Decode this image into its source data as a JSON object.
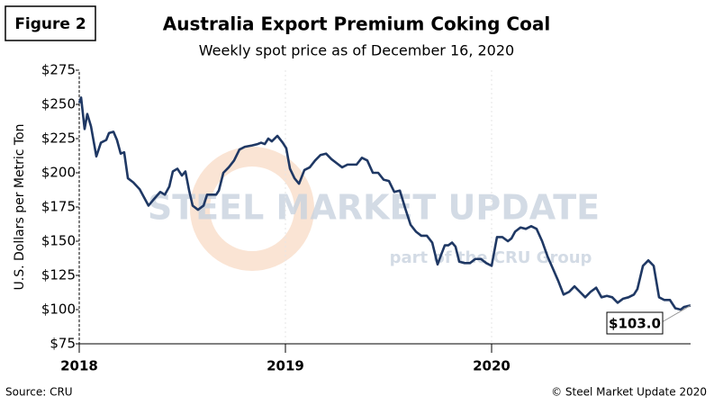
{
  "figure_label": "Figure 2",
  "source": "Source: CRU",
  "copyright": "© Steel Market Update 2020",
  "watermark": {
    "brand": "STEEL MARKET UPDATE",
    "tagline": "part of the CRU Group"
  },
  "chart_data": {
    "type": "line",
    "title": "Australia Export Premium Coking Coal",
    "subtitle": "Weekly spot price as of December  16, 2020",
    "y_label": "U.S. Dollars per Metric Ton",
    "xlim": [
      2018,
      2020.965
    ],
    "xticks": [
      2018,
      2019,
      2020
    ],
    "ylim": [
      75,
      275
    ],
    "yticks": [
      {
        "value": 75,
        "label": "$75"
      },
      {
        "value": 100,
        "label": "$100"
      },
      {
        "value": 125,
        "label": "$125"
      },
      {
        "value": 150,
        "label": "$150"
      },
      {
        "value": 175,
        "label": "$175"
      },
      {
        "value": 200,
        "label": "$200"
      },
      {
        "value": 225,
        "label": "$225"
      },
      {
        "value": 250,
        "label": "$250"
      },
      {
        "value": 275,
        "label": "$275"
      }
    ],
    "x": [
      2018.0,
      2018.009,
      2018.026,
      2018.039,
      2018.057,
      2018.083,
      2018.105,
      2018.131,
      2018.144,
      2018.166,
      2018.183,
      2018.201,
      2018.218,
      2018.236,
      2018.262,
      2018.293,
      2018.336,
      2018.358,
      2018.393,
      2018.415,
      2018.437,
      2018.454,
      2018.476,
      2018.498,
      2018.515,
      2018.533,
      2018.55,
      2018.576,
      2018.603,
      2018.62,
      2018.664,
      2018.677,
      2018.699,
      2018.725,
      2018.751,
      2018.777,
      2018.803,
      2018.838,
      2018.865,
      2018.882,
      2018.9,
      2018.917,
      2018.934,
      2018.961,
      2018.987,
      2019.004,
      2019.022,
      2019.044,
      2019.066,
      2019.092,
      2019.118,
      2019.144,
      2019.17,
      2019.197,
      2019.223,
      2019.249,
      2019.275,
      2019.301,
      2019.328,
      2019.345,
      2019.371,
      2019.397,
      2019.424,
      2019.45,
      2019.476,
      2019.502,
      2019.528,
      2019.555,
      2019.581,
      2019.607,
      2019.633,
      2019.659,
      2019.686,
      2019.712,
      2019.738,
      2019.755,
      2019.773,
      2019.79,
      2019.808,
      2019.825,
      2019.843,
      2019.869,
      2019.895,
      2019.921,
      2019.948,
      2019.974,
      2020.0,
      2020.026,
      2020.052,
      2020.079,
      2020.096,
      2020.114,
      2020.14,
      2020.166,
      2020.192,
      2020.218,
      2020.245,
      2020.271,
      2020.297,
      2020.323,
      2020.349,
      2020.376,
      2020.402,
      2020.428,
      2020.454,
      2020.48,
      2020.507,
      2020.533,
      2020.559,
      2020.585,
      2020.611,
      2020.638,
      2020.664,
      2020.69,
      2020.707,
      2020.734,
      2020.76,
      2020.786,
      2020.812,
      2020.838,
      2020.865,
      2020.891,
      2020.917,
      2020.934,
      2020.965
    ],
    "series": [
      {
        "name": "Premium Coking Coal",
        "color": "#1f3864",
        "values": [
          251,
          255,
          232,
          243,
          234,
          212,
          222,
          224,
          229,
          230,
          224,
          214,
          215,
          196,
          193,
          188,
          176,
          180,
          186,
          184,
          190,
          201,
          203,
          198,
          201,
          187,
          176,
          173,
          176,
          184,
          184,
          187,
          200,
          204,
          209,
          217,
          219,
          220,
          221,
          222,
          221,
          225,
          223,
          227,
          222,
          218,
          203,
          196,
          192,
          202,
          204,
          209,
          213,
          214,
          210,
          207,
          204,
          206,
          206,
          206,
          211,
          209,
          200,
          200,
          195,
          194,
          186,
          187,
          174,
          162,
          157,
          154,
          154,
          149,
          133,
          140,
          147,
          147,
          149,
          146,
          135,
          134,
          134,
          137,
          137,
          134,
          132,
          153,
          153,
          150,
          152,
          157,
          160,
          159,
          161,
          159,
          150,
          139,
          130,
          121,
          111,
          113,
          117,
          113,
          109,
          113,
          116,
          109,
          110,
          109,
          105,
          108,
          109,
          111,
          115,
          132,
          136,
          132,
          109,
          107,
          107,
          101,
          100,
          102,
          103
        ]
      }
    ],
    "last_label": {
      "value": 103,
      "label": "$103.0"
    }
  }
}
